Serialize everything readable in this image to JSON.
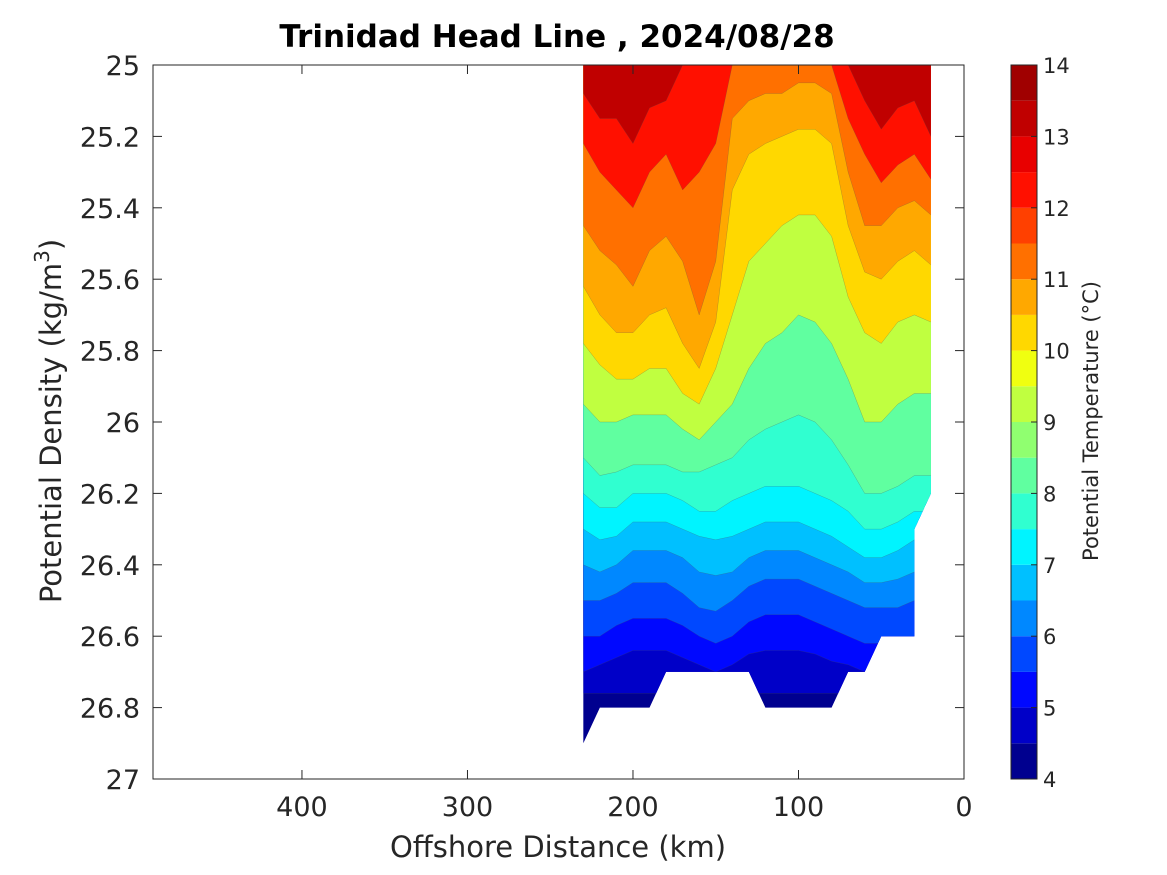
{
  "chart_data": {
    "type": "contour",
    "title": "Trinidad Head Line , 2024/08/28",
    "xlabel": "Offshore Distance (km)",
    "ylabel_main": "Potential Density (kg/m",
    "ylabel_sup": "3",
    "ylabel_end": ")",
    "x_reversed": true,
    "y_reversed": true,
    "xlim": [
      490,
      0
    ],
    "ylim": [
      25,
      27
    ],
    "x_ticks": [
      400,
      300,
      200,
      100,
      0
    ],
    "y_ticks": [
      25,
      25.2,
      25.4,
      25.6,
      25.8,
      26,
      26.2,
      26.4,
      26.6,
      26.8,
      27
    ],
    "y_tick_labels": [
      "25",
      "25.2",
      "25.4",
      "25.6",
      "25.8",
      "26",
      "26.2",
      "26.4",
      "26.6",
      "26.8",
      "27"
    ],
    "colorbar": {
      "label": "Potential Temperature (°C)",
      "range": [
        4,
        14
      ],
      "ticks": [
        4,
        5,
        6,
        7,
        8,
        9,
        10,
        11,
        12,
        13,
        14
      ],
      "step": 0.5,
      "colors": [
        "#00008f",
        "#0000c8",
        "#0008ff",
        "#0048ff",
        "#0088ff",
        "#00c0ff",
        "#00f4ff",
        "#30ffd0",
        "#60ffa0",
        "#90ff70",
        "#c0ff40",
        "#f0ff10",
        "#ffd800",
        "#ffa800",
        "#ff7000",
        "#ff4000",
        "#ff1000",
        "#e80000",
        "#c00000",
        "#a00000"
      ]
    },
    "x": [
      230,
      220,
      210,
      200,
      190,
      180,
      170,
      160,
      150,
      140,
      130,
      120,
      110,
      100,
      90,
      80,
      70,
      60,
      50,
      40,
      30,
      20
    ],
    "isopycnals": [
      {
        "t": 13.0,
        "d": [
          25.08,
          25.15,
          25.15,
          25.22,
          25.12,
          25.1,
          25.0,
          25.0,
          25.0,
          25.0,
          25.0,
          25.0,
          25.0,
          25.0,
          25.0,
          25.0,
          25.0,
          25.1,
          25.18,
          25.12,
          25.1,
          25.2
        ]
      },
      {
        "t": 12.0,
        "d": [
          25.22,
          25.3,
          25.35,
          25.4,
          25.3,
          25.25,
          25.35,
          25.3,
          25.22,
          25.0,
          25.0,
          25.0,
          25.0,
          25.0,
          25.0,
          25.0,
          25.15,
          25.25,
          25.33,
          25.28,
          25.25,
          25.32
        ]
      },
      {
        "t": 11.0,
        "d": [
          25.45,
          25.52,
          25.56,
          25.62,
          25.52,
          25.48,
          25.55,
          25.7,
          25.55,
          25.15,
          25.1,
          25.08,
          25.08,
          25.05,
          25.05,
          25.08,
          25.3,
          25.45,
          25.45,
          25.4,
          25.38,
          25.42
        ]
      },
      {
        "t": 10.5,
        "d": [
          25.62,
          25.7,
          25.75,
          25.75,
          25.7,
          25.68,
          25.78,
          25.85,
          25.72,
          25.35,
          25.25,
          25.22,
          25.2,
          25.18,
          25.18,
          25.22,
          25.45,
          25.58,
          25.6,
          25.55,
          25.52,
          25.56
        ]
      },
      {
        "t": 10.0,
        "d": [
          25.78,
          25.84,
          25.88,
          25.88,
          25.85,
          25.85,
          25.92,
          25.95,
          25.85,
          25.7,
          25.55,
          25.5,
          25.45,
          25.42,
          25.42,
          25.48,
          25.65,
          25.75,
          25.78,
          25.72,
          25.7,
          25.72
        ]
      },
      {
        "t": 9.0,
        "d": [
          25.95,
          26.0,
          26.0,
          25.98,
          25.98,
          25.98,
          26.02,
          26.05,
          26.0,
          25.95,
          25.85,
          25.78,
          25.75,
          25.7,
          25.72,
          25.78,
          25.88,
          26.0,
          26.0,
          25.95,
          25.92,
          25.92
        ]
      },
      {
        "t": 8.0,
        "d": [
          26.1,
          26.15,
          26.14,
          26.12,
          26.12,
          26.12,
          26.14,
          26.14,
          26.12,
          26.1,
          26.05,
          26.02,
          26.0,
          25.98,
          26.0,
          26.05,
          26.12,
          26.2,
          26.2,
          26.18,
          26.15,
          26.15
        ]
      },
      {
        "t": 7.5,
        "d": [
          26.2,
          26.24,
          26.24,
          26.2,
          26.2,
          26.2,
          26.22,
          26.25,
          26.25,
          26.22,
          26.2,
          26.18,
          26.18,
          26.18,
          26.2,
          26.22,
          26.25,
          26.3,
          26.3,
          26.28,
          26.25,
          26.25
        ]
      },
      {
        "t": 7.0,
        "d": [
          26.3,
          26.33,
          26.32,
          26.28,
          26.28,
          26.28,
          26.3,
          26.32,
          26.33,
          26.32,
          26.3,
          26.28,
          26.28,
          26.28,
          26.3,
          26.32,
          26.35,
          26.38,
          26.38,
          26.36,
          26.33,
          26.33
        ]
      },
      {
        "t": 6.5,
        "d": [
          26.4,
          26.42,
          26.4,
          26.36,
          26.36,
          26.36,
          26.38,
          26.42,
          26.43,
          26.42,
          26.38,
          26.36,
          26.36,
          26.36,
          26.38,
          26.4,
          26.42,
          26.45,
          26.45,
          26.44,
          26.42,
          26.42
        ]
      },
      {
        "t": 6.0,
        "d": [
          26.5,
          26.5,
          26.48,
          26.45,
          26.45,
          26.45,
          26.48,
          26.52,
          26.53,
          26.5,
          26.46,
          26.44,
          26.44,
          26.44,
          26.46,
          26.48,
          26.5,
          26.52,
          26.52,
          26.52,
          26.5,
          26.5
        ]
      },
      {
        "t": 5.5,
        "d": [
          26.6,
          26.6,
          26.57,
          26.55,
          26.55,
          26.55,
          26.57,
          26.6,
          26.62,
          26.6,
          26.56,
          26.54,
          26.54,
          26.54,
          26.56,
          26.58,
          26.6,
          26.62,
          26.62,
          26.62,
          26.62,
          26.62
        ]
      },
      {
        "t": 5.0,
        "d": [
          26.7,
          26.68,
          26.66,
          26.64,
          26.64,
          26.64,
          26.66,
          26.68,
          26.7,
          26.68,
          26.65,
          26.64,
          26.64,
          26.64,
          26.65,
          26.67,
          26.68,
          26.7,
          26.7,
          26.7,
          26.7,
          26.7
        ]
      },
      {
        "t": 4.5,
        "d": [
          26.76,
          26.76,
          26.76,
          26.76,
          26.76,
          26.76,
          26.76,
          26.76,
          26.76,
          26.76,
          26.76,
          26.76,
          26.76,
          26.76,
          26.76,
          26.76,
          26.76,
          26.76,
          26.76,
          26.76,
          26.76,
          26.76
        ]
      }
    ],
    "data_boundary": [
      [
        230,
        25.0
      ],
      [
        20,
        25.0
      ],
      [
        20,
        25.1
      ],
      [
        30,
        25.0
      ],
      [
        40,
        25.1
      ],
      [
        50,
        25.1
      ],
      [
        60,
        25.0
      ],
      [
        30,
        25.0
      ],
      [
        20,
        25.1
      ],
      [
        20,
        26.2
      ],
      [
        30,
        26.3
      ],
      [
        30,
        26.6
      ],
      [
        50,
        26.6
      ],
      [
        60,
        26.7
      ],
      [
        70,
        26.7
      ],
      [
        80,
        26.8
      ],
      [
        120,
        26.8
      ],
      [
        130,
        26.7
      ],
      [
        180,
        26.7
      ],
      [
        190,
        26.8
      ],
      [
        220,
        26.8
      ],
      [
        230,
        26.9
      ]
    ]
  }
}
